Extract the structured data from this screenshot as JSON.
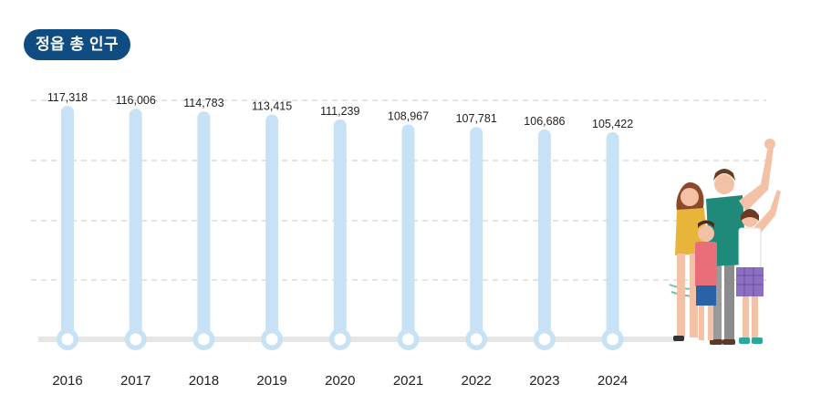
{
  "title": "정읍 총 인구",
  "colors": {
    "title_bg": "#0f4c81",
    "bar": "#c8e2f5",
    "baseline": "#e6e6e6",
    "grid": "#c8c8c8"
  },
  "chart_data": {
    "type": "bar",
    "title": "정읍 총 인구",
    "xlabel": "",
    "ylabel": "",
    "grid": true,
    "categories": [
      "2016",
      "2017",
      "2018",
      "2019",
      "2020",
      "2021",
      "2022",
      "2023",
      "2024"
    ],
    "values": [
      117318,
      116006,
      114783,
      113415,
      111239,
      108967,
      107781,
      106686,
      105422
    ],
    "value_labels": [
      "117,318",
      "116,006",
      "114,783",
      "113,415",
      "111,239",
      "108,967",
      "107,781",
      "106,686",
      "105,422"
    ]
  }
}
